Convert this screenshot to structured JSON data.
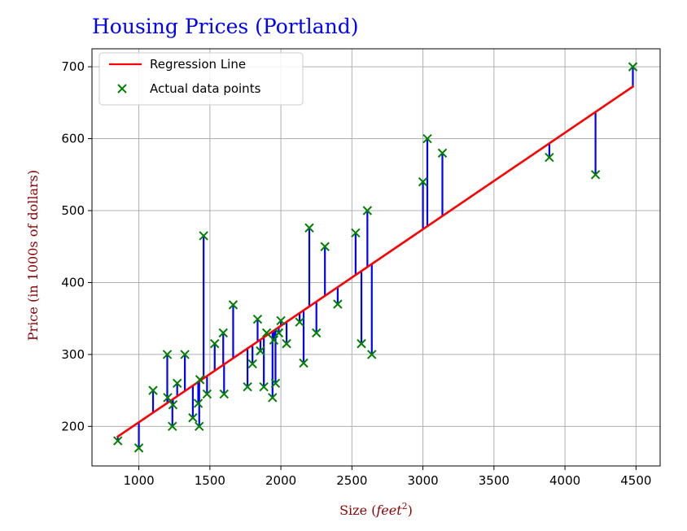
{
  "chart_data": {
    "type": "scatter",
    "title": "Housing Prices (Portland)",
    "xlabel": "Size (",
    "xlabel_var": "feet",
    "xlabel_exp": "2",
    "xlabel_close": ")",
    "ylabel": "Price (in 1000s of dollars)",
    "xlim": [
      670,
      4670
    ],
    "ylim": [
      145,
      725
    ],
    "x_ticks": [
      1000,
      1500,
      2000,
      2500,
      3000,
      3500,
      4000,
      4500
    ],
    "y_ticks": [
      200,
      300,
      400,
      500,
      600,
      700
    ],
    "grid": true,
    "legend": {
      "position": "top-left",
      "line_label": "Regression Line",
      "points_label": "Actual data points"
    },
    "colors": {
      "title": "#0000ff",
      "axis_label": "#8b0000",
      "regression": "#ff0000",
      "points": "#008000",
      "residuals": "#0000ff",
      "grid": "#b0b0b0"
    },
    "regression": {
      "slope": 0.1342,
      "intercept": 71.5
    },
    "series": [
      {
        "name": "Actual data points",
        "points": [
          [
            852,
            180
          ],
          [
            1000,
            170
          ],
          [
            1100,
            250
          ],
          [
            1200,
            300
          ],
          [
            1203,
            240
          ],
          [
            1236,
            200
          ],
          [
            1240,
            230
          ],
          [
            1270,
            260
          ],
          [
            1324,
            300
          ],
          [
            1380,
            212
          ],
          [
            1418,
            232
          ],
          [
            1425,
            200
          ],
          [
            1430,
            265
          ],
          [
            1456,
            465
          ],
          [
            1480,
            245
          ],
          [
            1534,
            315
          ],
          [
            1594,
            330
          ],
          [
            1600,
            245
          ],
          [
            1664,
            369
          ],
          [
            1765,
            255
          ],
          [
            1800,
            287
          ],
          [
            1836,
            349
          ],
          [
            1856,
            305
          ],
          [
            1880,
            255
          ],
          [
            1900,
            330
          ],
          [
            1941,
            240
          ],
          [
            1950,
            320
          ],
          [
            1962,
            260
          ],
          [
            1985,
            330
          ],
          [
            2000,
            347
          ],
          [
            2040,
            315
          ],
          [
            2132,
            345
          ],
          [
            2160,
            288
          ],
          [
            2200,
            476
          ],
          [
            2250,
            330
          ],
          [
            2310,
            450
          ],
          [
            2400,
            370
          ],
          [
            2526,
            469
          ],
          [
            2567,
            315
          ],
          [
            2609,
            500
          ],
          [
            2640,
            300
          ],
          [
            3000,
            540
          ],
          [
            3031,
            600
          ],
          [
            3137,
            580
          ],
          [
            3890,
            574
          ],
          [
            4215,
            550
          ],
          [
            4478,
            700
          ]
        ]
      }
    ]
  }
}
